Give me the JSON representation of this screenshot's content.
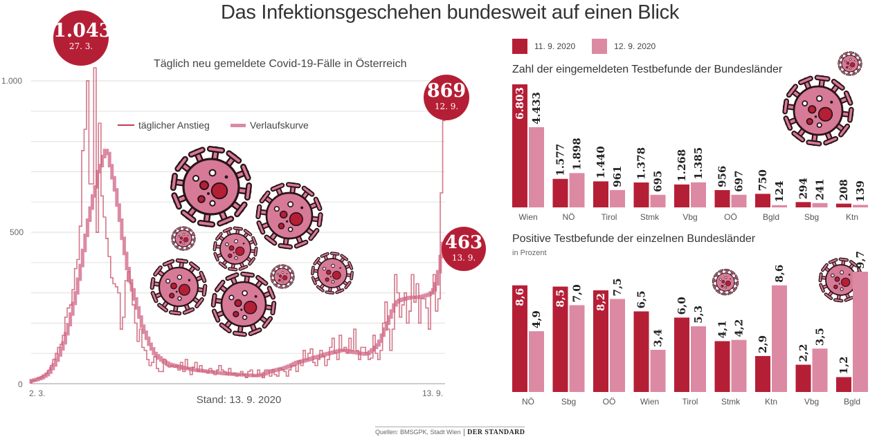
{
  "title": "Das Infektionsgeschehen bundesweit auf einen Blick",
  "colors": {
    "dark": "#b51f36",
    "light": "#dc8aa3",
    "line": "#b82a45",
    "virus_fill": "#d77a97",
    "virus_outline": "#2a1418",
    "virus_spot": "#b51f36"
  },
  "footer": {
    "source": "Quellen: BMSGPK, Stadt Wien",
    "brand": "DER STANDARD"
  },
  "icons": [
    "virus-icon"
  ],
  "chart_data": [
    {
      "type": "line",
      "title": "Täglich neu gemeldete Covid-19-Fälle in Österreich",
      "subtitle": "Stand: 13. 9. 2020",
      "xlabel": "",
      "ylabel": "",
      "x_tick_labels": [
        "2. 3.",
        "13. 9."
      ],
      "y_tick_labels": [
        "0",
        "500",
        "1.000"
      ],
      "y_ticks": [
        0,
        500,
        1000
      ],
      "ylim": [
        0,
        1000
      ],
      "grid": true,
      "gridline_step": 100,
      "legend": {
        "position": "top-center",
        "entries": [
          "täglicher Anstieg",
          "Verlaufskurve"
        ]
      },
      "annotations": [
        {
          "value": "1.043",
          "date": "27. 3.",
          "series": "täglicher Anstieg"
        },
        {
          "value": "869",
          "date": "12. 9.",
          "series": "täglicher Anstieg"
        },
        {
          "value": "463",
          "date": "13. 9.",
          "series": "Verlaufskurve"
        }
      ],
      "x_start": "2. 3.",
      "x_end": "13. 9.",
      "series": [
        {
          "name": "täglicher Anstieg",
          "style": "step-outline",
          "values": [
            10,
            12,
            15,
            18,
            22,
            28,
            35,
            45,
            60,
            80,
            100,
            120,
            130,
            160,
            220,
            250,
            260,
            310,
            380,
            410,
            520,
            770,
            840,
            1000,
            660,
            660,
            1043,
            500,
            860,
            620,
            550,
            480,
            420,
            350,
            330,
            320,
            300,
            180,
            220,
            340,
            370,
            330,
            260,
            200,
            140,
            180,
            120,
            110,
            80,
            60,
            70,
            90,
            50,
            40,
            40,
            80,
            60,
            55,
            60,
            55,
            60,
            45,
            70,
            40,
            80,
            50,
            30,
            55,
            70,
            40,
            60,
            40,
            40,
            35,
            50,
            40,
            30,
            45,
            60,
            45,
            40,
            30,
            50,
            30,
            35,
            25,
            30,
            40,
            30,
            20,
            40,
            45,
            25,
            25,
            45,
            30,
            20,
            45,
            45,
            25,
            45,
            30,
            25,
            50,
            45,
            40,
            25,
            45,
            60,
            60,
            40,
            75,
            60,
            110,
            80,
            100,
            115,
            70,
            60,
            80,
            110,
            90,
            60,
            80,
            120,
            150,
            100,
            80,
            160,
            110,
            120,
            100,
            150,
            110,
            180,
            110,
            80,
            120,
            120,
            100,
            80,
            85,
            160,
            100,
            80,
            110,
            200,
            270,
            180,
            110,
            180,
            360,
            300,
            220,
            260,
            300,
            200,
            240,
            360,
            270,
            330,
            200,
            280,
            280,
            250,
            180,
            300,
            360,
            240,
            280,
            630,
            869
          ]
        },
        {
          "name": "Verlaufskurve",
          "style": "step-thick",
          "values": [
            10,
            12,
            14,
            17,
            20,
            25,
            30,
            38,
            50,
            62,
            78,
            95,
            115,
            135,
            165,
            195,
            230,
            265,
            300,
            345,
            390,
            440,
            490,
            540,
            580,
            620,
            650,
            700,
            720,
            750,
            770,
            760,
            720,
            680,
            640,
            590,
            540,
            480,
            430,
            380,
            340,
            310,
            280,
            250,
            220,
            190,
            170,
            150,
            130,
            115,
            100,
            92,
            85,
            78,
            72,
            68,
            64,
            62,
            60,
            58,
            56,
            54,
            52,
            50,
            50,
            48,
            46,
            45,
            44,
            43,
            42,
            41,
            40,
            39,
            38,
            37,
            36,
            35,
            34,
            33,
            33,
            32,
            32,
            31,
            30,
            30,
            29,
            29,
            28,
            28,
            27,
            27,
            27,
            28,
            30,
            33,
            37,
            40,
            42,
            44,
            46,
            48,
            50,
            52,
            55,
            58,
            62,
            66,
            70,
            72,
            74,
            76,
            78,
            80,
            83,
            86,
            88,
            90,
            92,
            95,
            98,
            100,
            102,
            104,
            106,
            108,
            110,
            110,
            110,
            108,
            106,
            104,
            103,
            102,
            100,
            99,
            98,
            100,
            105,
            112,
            120,
            128,
            140,
            160,
            180,
            200,
            220,
            240,
            260,
            270,
            275,
            278,
            280,
            282,
            284,
            285,
            285,
            285,
            286,
            288,
            290,
            292,
            295,
            300,
            310,
            330,
            370,
            420,
            463
          ]
        }
      ]
    },
    {
      "type": "bar",
      "title": "Zahl der eingemeldeten Testbefunde der Bundesländer",
      "legend": {
        "position": "top-left",
        "entries": [
          "11. 9. 2020",
          "12. 9. 2020"
        ]
      },
      "categories": [
        "Wien",
        "NÖ",
        "Tirol",
        "Stmk",
        "Vbg",
        "OÖ",
        "Bgld",
        "Sbg",
        "Ktn"
      ],
      "series": [
        {
          "name": "11. 9. 2020",
          "values": [
            6803,
            1577,
            1440,
            1378,
            1268,
            956,
            750,
            294,
            208
          ],
          "labels": [
            "6.803",
            "1.577",
            "1.440",
            "1.378",
            "1.268",
            "956",
            "750",
            "294",
            "208"
          ]
        },
        {
          "name": "12. 9. 2020",
          "values": [
            4433,
            1898,
            961,
            695,
            1385,
            697,
            124,
            241,
            139
          ],
          "labels": [
            "4.433",
            "1.898",
            "961",
            "695",
            "1.385",
            "697",
            "124",
            "241",
            "139"
          ]
        }
      ],
      "ylim": [
        0,
        6803
      ]
    },
    {
      "type": "bar",
      "title": "Positive Testbefunde der einzelnen Bundesländer",
      "subtitle": "in Prozent",
      "categories": [
        "NÖ",
        "Sbg",
        "OÖ",
        "Wien",
        "Tirol",
        "Stmk",
        "Ktn",
        "Vbg",
        "Bgld"
      ],
      "series": [
        {
          "name": "11. 9. 2020",
          "values": [
            8.6,
            8.5,
            8.2,
            6.5,
            6.0,
            4.1,
            2.9,
            2.2,
            1.2
          ],
          "labels": [
            "8,6",
            "8,5",
            "8,2",
            "6,5",
            "6,0",
            "4,1",
            "2,9",
            "2,2",
            "1,2"
          ]
        },
        {
          "name": "12. 9. 2020",
          "values": [
            4.9,
            7.0,
            7.5,
            3.4,
            5.3,
            4.2,
            8.6,
            3.5,
            9.7
          ],
          "labels": [
            "4,9",
            "7,0",
            "7,5",
            "3,4",
            "5,3",
            "4,2",
            "8,6",
            "3,5",
            "9,7"
          ]
        }
      ],
      "ylim": [
        0,
        9.7
      ]
    }
  ]
}
